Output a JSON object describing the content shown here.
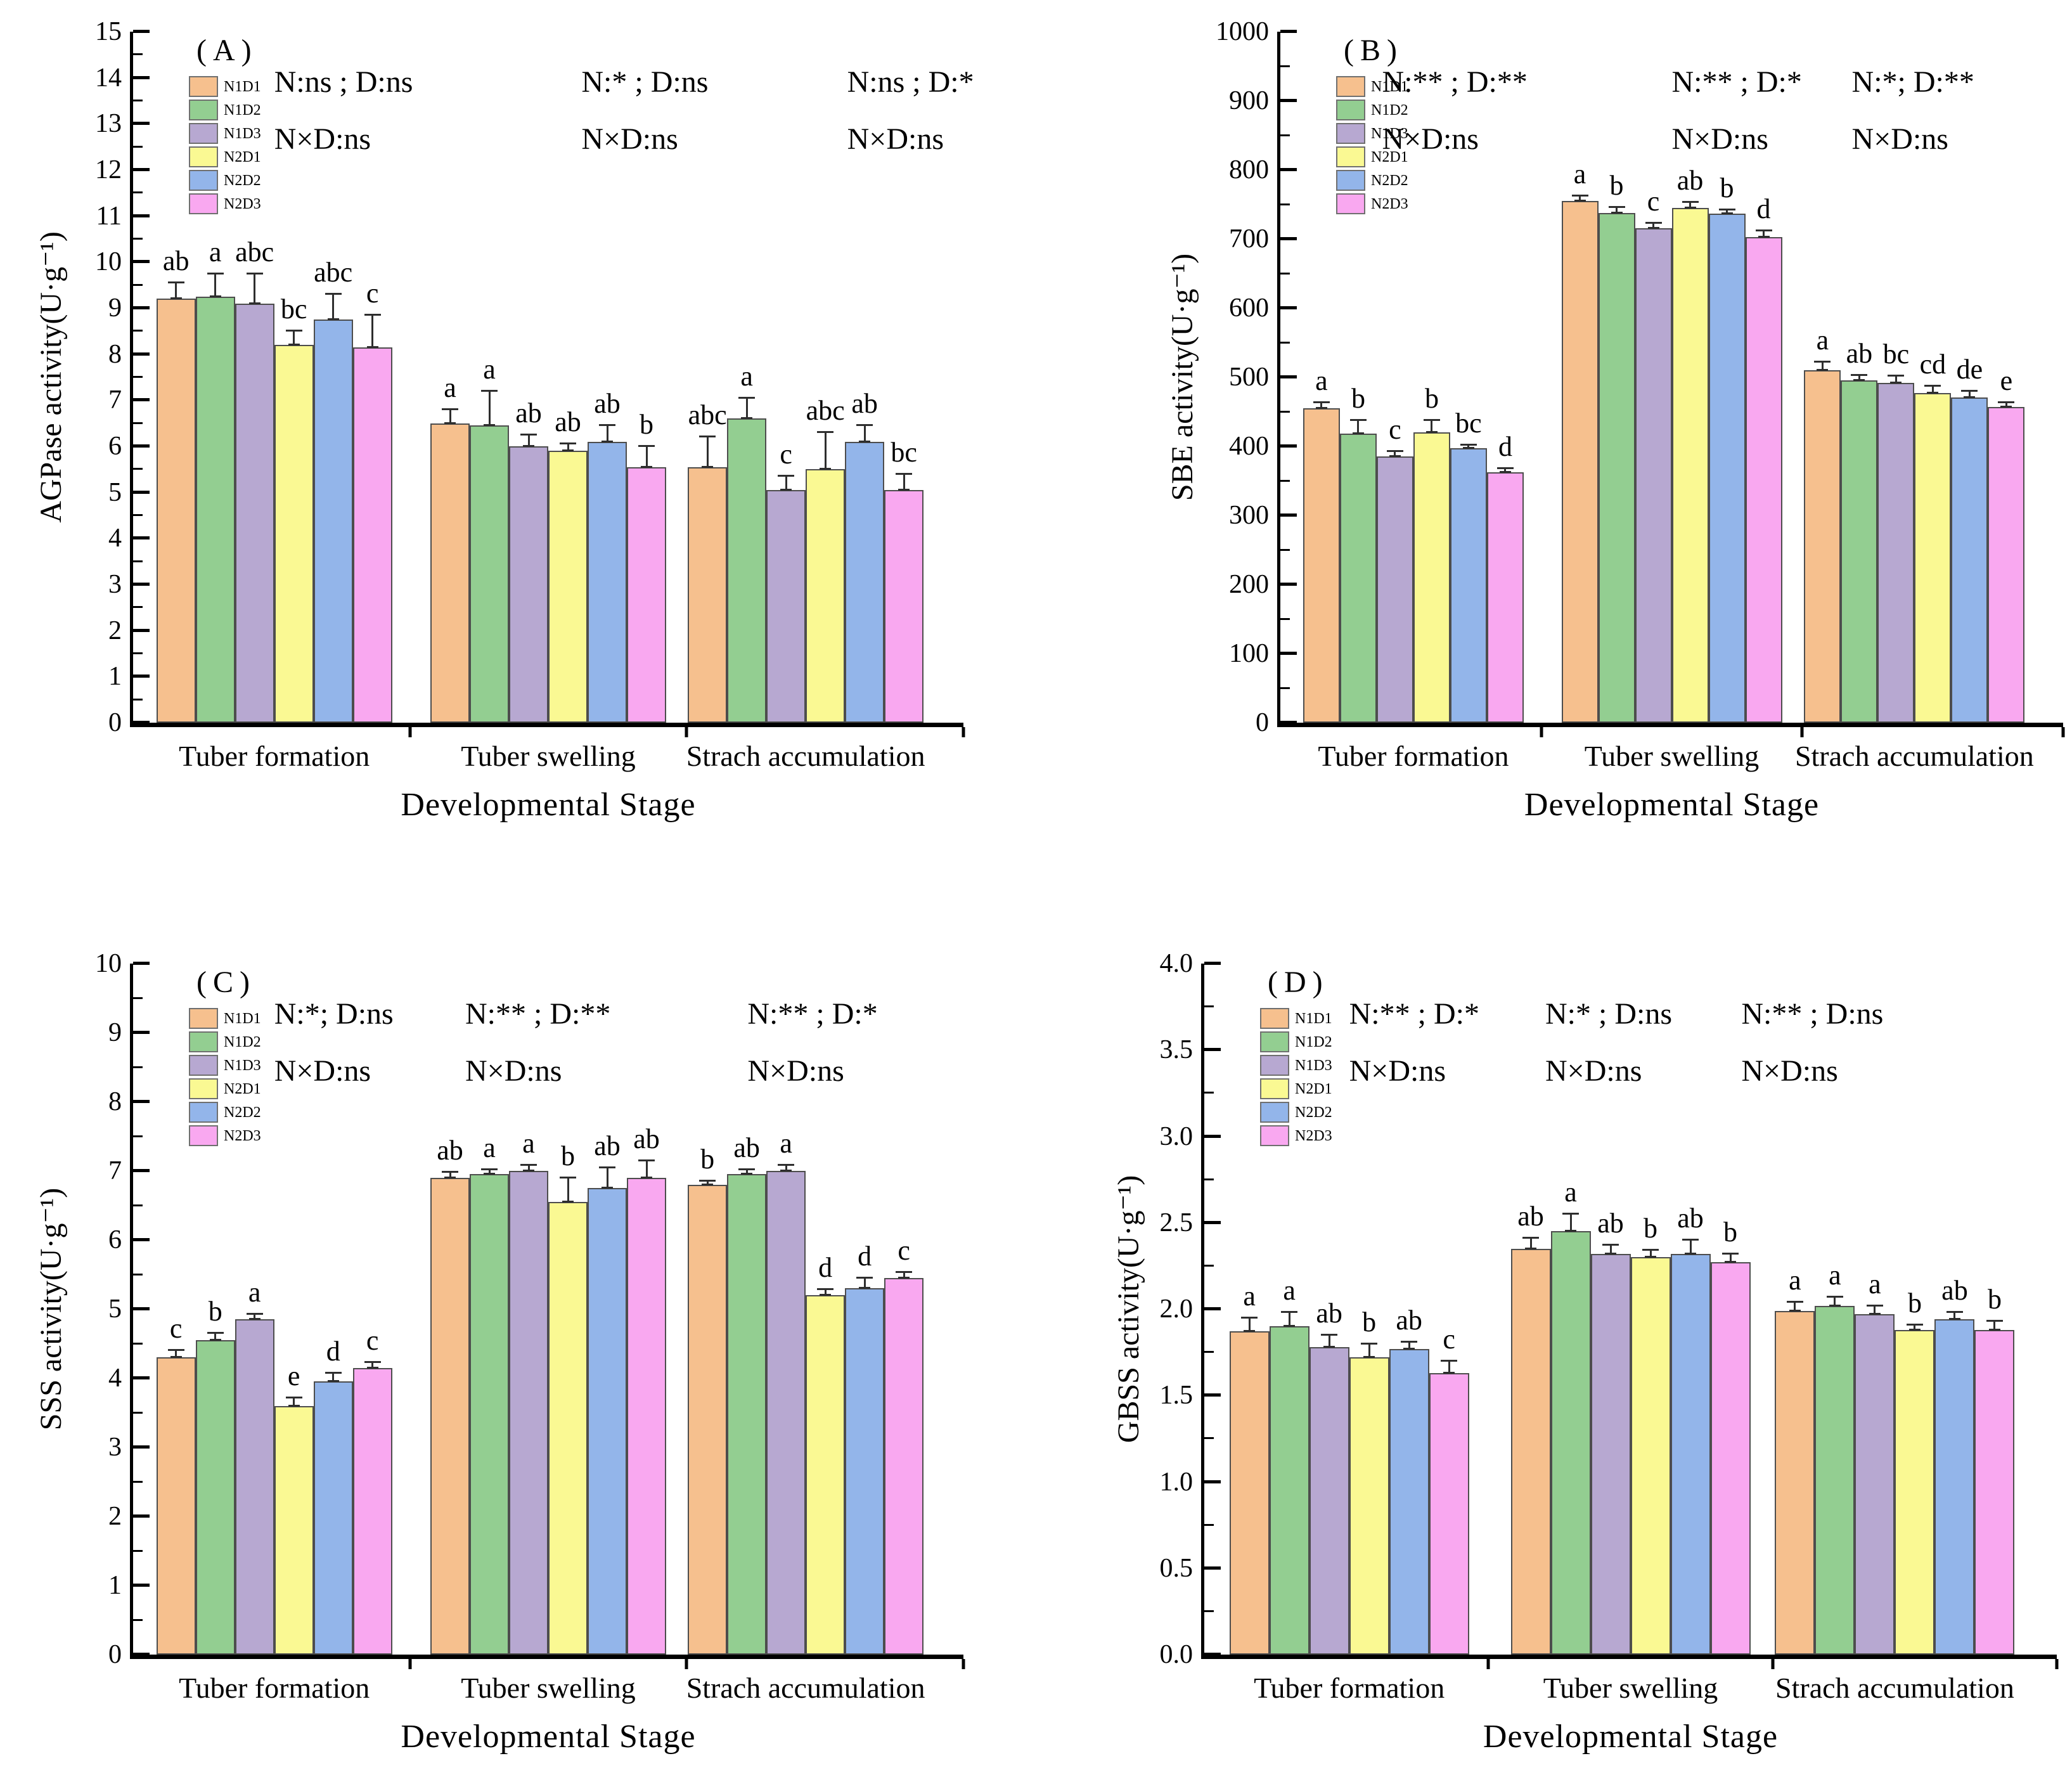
{
  "figure": {
    "xlabel": "Developmental  Stage",
    "categories": [
      "Tuber formation",
      "Tuber swelling",
      "Strach accumulation"
    ],
    "legend": [
      {
        "label": "N1D1",
        "color": "#F6C08E"
      },
      {
        "label": "N1D2",
        "color": "#93CE91"
      },
      {
        "label": "N1D3",
        "color": "#B7A8D1"
      },
      {
        "label": "N2D1",
        "color": "#FAF993"
      },
      {
        "label": "N2D2",
        "color": "#93B5EA"
      },
      {
        "label": "N2D3",
        "color": "#F9A8F0"
      }
    ]
  },
  "chart_data": [
    {
      "type": "bar",
      "panel": "(A)",
      "ylabel": "AGPase activity(U·g⁻¹)",
      "ylim": [
        0,
        15
      ],
      "ymajor": 1,
      "decimals": 0,
      "grid": false,
      "legend_position": "top-left",
      "yticks": [
        "0",
        "1",
        "2",
        "3",
        "4",
        "5",
        "6",
        "7",
        "8",
        "9",
        "10",
        "11",
        "12",
        "13",
        "14",
        "15"
      ],
      "categories": [
        "Tuber formation",
        "Tuber swelling",
        "Strach accumulation"
      ],
      "annotations": [
        {
          "line1": "N:ns ; D:ns",
          "line2": "N×D:ns"
        },
        {
          "line1": "N:* ; D:ns",
          "line2": "N×D:ns"
        },
        {
          "line1": "N:ns ; D:*",
          "line2": "N×D:ns"
        }
      ],
      "series": [
        {
          "name": "N1D1",
          "color": "#F6C08E",
          "values": [
            9.2,
            6.5,
            5.55
          ],
          "errors": [
            0.35,
            0.3,
            0.65
          ],
          "letters": [
            "ab",
            "a",
            "abc"
          ]
        },
        {
          "name": "N1D2",
          "color": "#93CE91",
          "values": [
            9.25,
            6.45,
            6.6
          ],
          "errors": [
            0.5,
            0.75,
            0.45
          ],
          "letters": [
            "a",
            "a",
            "a"
          ]
        },
        {
          "name": "N1D3",
          "color": "#B7A8D1",
          "values": [
            9.1,
            6.0,
            5.05
          ],
          "errors": [
            0.65,
            0.25,
            0.3
          ],
          "letters": [
            "abc",
            "ab",
            "c"
          ]
        },
        {
          "name": "N2D1",
          "color": "#FAF993",
          "values": [
            8.2,
            5.9,
            5.5
          ],
          "errors": [
            0.3,
            0.15,
            0.8
          ],
          "letters": [
            "bc",
            "ab",
            "abc"
          ]
        },
        {
          "name": "N2D2",
          "color": "#93B5EA",
          "values": [
            8.75,
            6.1,
            6.1
          ],
          "errors": [
            0.55,
            0.35,
            0.35
          ],
          "letters": [
            "abc",
            "ab",
            "ab"
          ]
        },
        {
          "name": "N2D3",
          "color": "#F9A8F0",
          "values": [
            8.15,
            5.55,
            5.05
          ],
          "errors": [
            0.7,
            0.45,
            0.35
          ],
          "letters": [
            "c",
            "b",
            "bc"
          ]
        }
      ]
    },
    {
      "type": "bar",
      "panel": "(B)",
      "ylabel": "SBE activity(U·g⁻¹)",
      "ylim": [
        0,
        1000
      ],
      "ymajor": 100,
      "decimals": 0,
      "grid": false,
      "legend_position": "top-left",
      "yticks": [
        "0",
        "100",
        "200",
        "300",
        "400",
        "500",
        "600",
        "700",
        "800",
        "900",
        "1000"
      ],
      "categories": [
        "Tuber formation",
        "Tuber swelling",
        "Strach accumulation"
      ],
      "annotations": [
        {
          "line1": "N:** ; D:**",
          "line2": "N×D:ns"
        },
        {
          "line1": "N:** ; D:*",
          "line2": "N×D:ns"
        },
        {
          "line1": "N:*; D:**",
          "line2": "N×D:ns"
        }
      ],
      "series": [
        {
          "name": "N1D1",
          "color": "#F6C08E",
          "values": [
            455,
            755,
            510
          ],
          "errors": [
            8,
            7,
            12
          ],
          "letters": [
            "a",
            "a",
            "a"
          ]
        },
        {
          "name": "N1D2",
          "color": "#93CE91",
          "values": [
            418,
            738,
            495
          ],
          "errors": [
            20,
            8,
            8
          ],
          "letters": [
            "b",
            "b",
            "ab"
          ]
        },
        {
          "name": "N1D3",
          "color": "#B7A8D1",
          "values": [
            385,
            716,
            492
          ],
          "errors": [
            8,
            7,
            10
          ],
          "letters": [
            "c",
            "c",
            "bc"
          ]
        },
        {
          "name": "N2D1",
          "color": "#FAF993",
          "values": [
            420,
            745,
            477
          ],
          "errors": [
            18,
            8,
            10
          ],
          "letters": [
            "b",
            "ab",
            "cd"
          ]
        },
        {
          "name": "N2D2",
          "color": "#93B5EA",
          "values": [
            397,
            737,
            471
          ],
          "errors": [
            5,
            5,
            9
          ],
          "letters": [
            "bc",
            "b",
            "de"
          ]
        },
        {
          "name": "N2D3",
          "color": "#F9A8F0",
          "values": [
            362,
            703,
            457
          ],
          "errors": [
            6,
            9,
            6
          ],
          "letters": [
            "d",
            "d",
            "e"
          ]
        }
      ]
    },
    {
      "type": "bar",
      "panel": "(C)",
      "ylabel": "SSS activity(U·g⁻¹)",
      "ylim": [
        0,
        10
      ],
      "ymajor": 1,
      "decimals": 0,
      "grid": false,
      "legend_position": "top-left",
      "yticks": [
        "0",
        "1",
        "2",
        "3",
        "4",
        "5",
        "6",
        "7",
        "8",
        "9",
        "10"
      ],
      "categories": [
        "Tuber formation",
        "Tuber swelling",
        "Strach accumulation"
      ],
      "annotations": [
        {
          "line1": "N:*; D:ns",
          "line2": "N×D:ns"
        },
        {
          "line1": "N:** ; D:**",
          "line2": "N×D:ns"
        },
        {
          "line1": "N:** ; D:*",
          "line2": "N×D:ns"
        }
      ],
      "series": [
        {
          "name": "N1D1",
          "color": "#F6C08E",
          "values": [
            4.3,
            6.9,
            6.8
          ],
          "errors": [
            0.1,
            0.08,
            0.05
          ],
          "letters": [
            "c",
            "ab",
            "b"
          ]
        },
        {
          "name": "N1D2",
          "color": "#93CE91",
          "values": [
            4.55,
            6.95,
            6.95
          ],
          "errors": [
            0.1,
            0.07,
            0.07
          ],
          "letters": [
            "b",
            "a",
            "ab"
          ]
        },
        {
          "name": "N1D3",
          "color": "#B7A8D1",
          "values": [
            4.85,
            7.0,
            7.0
          ],
          "errors": [
            0.08,
            0.08,
            0.08
          ],
          "letters": [
            "a",
            "a",
            "a"
          ]
        },
        {
          "name": "N2D1",
          "color": "#FAF993",
          "values": [
            3.6,
            6.55,
            5.2
          ],
          "errors": [
            0.12,
            0.35,
            0.08
          ],
          "letters": [
            "e",
            "b",
            "d"
          ]
        },
        {
          "name": "N2D2",
          "color": "#93B5EA",
          "values": [
            3.95,
            6.75,
            5.3
          ],
          "errors": [
            0.12,
            0.3,
            0.15
          ],
          "letters": [
            "d",
            "ab",
            "d"
          ]
        },
        {
          "name": "N2D3",
          "color": "#F9A8F0",
          "values": [
            4.15,
            6.9,
            5.45
          ],
          "errors": [
            0.08,
            0.25,
            0.08
          ],
          "letters": [
            "c",
            "ab",
            "c"
          ]
        }
      ]
    },
    {
      "type": "bar",
      "panel": "(D)",
      "ylabel": "GBSS activity(U·g⁻¹)",
      "ylim": [
        0,
        4
      ],
      "ymajor": 0.5,
      "decimals": 1,
      "grid": false,
      "legend_position": "top-left",
      "yticks": [
        "0.0",
        "0.5",
        "1.0",
        "1.5",
        "2.0",
        "2.5",
        "3.0",
        "3.5",
        "4.0"
      ],
      "categories": [
        "Tuber formation",
        "Tuber swelling",
        "Strach accumulation"
      ],
      "annotations": [
        {
          "line1": "N:** ; D:*",
          "line2": "N×D:ns"
        },
        {
          "line1": "N:* ; D:ns",
          "line2": "N×D:ns"
        },
        {
          "line1": "N:** ; D:ns",
          "line2": "N×D:ns"
        }
      ],
      "series": [
        {
          "name": "N1D1",
          "color": "#F6C08E",
          "values": [
            1.87,
            2.35,
            1.99
          ],
          "errors": [
            0.08,
            0.06,
            0.05
          ],
          "letters": [
            "a",
            "ab",
            "a"
          ]
        },
        {
          "name": "N1D2",
          "color": "#93CE91",
          "values": [
            1.9,
            2.45,
            2.02
          ],
          "errors": [
            0.08,
            0.1,
            0.05
          ],
          "letters": [
            "a",
            "a",
            "a"
          ]
        },
        {
          "name": "N1D3",
          "color": "#B7A8D1",
          "values": [
            1.78,
            2.32,
            1.97
          ],
          "errors": [
            0.07,
            0.05,
            0.05
          ],
          "letters": [
            "ab",
            "ab",
            "a"
          ]
        },
        {
          "name": "N2D1",
          "color": "#FAF993",
          "values": [
            1.72,
            2.3,
            1.88
          ],
          "errors": [
            0.08,
            0.04,
            0.03
          ],
          "letters": [
            "b",
            "b",
            "b"
          ]
        },
        {
          "name": "N2D2",
          "color": "#93B5EA",
          "values": [
            1.77,
            2.32,
            1.94
          ],
          "errors": [
            0.04,
            0.08,
            0.04
          ],
          "letters": [
            "ab",
            "ab",
            "ab"
          ]
        },
        {
          "name": "N2D3",
          "color": "#F9A8F0",
          "values": [
            1.63,
            2.27,
            1.88
          ],
          "errors": [
            0.07,
            0.05,
            0.05
          ],
          "letters": [
            "c",
            "b",
            "b"
          ]
        }
      ]
    }
  ]
}
